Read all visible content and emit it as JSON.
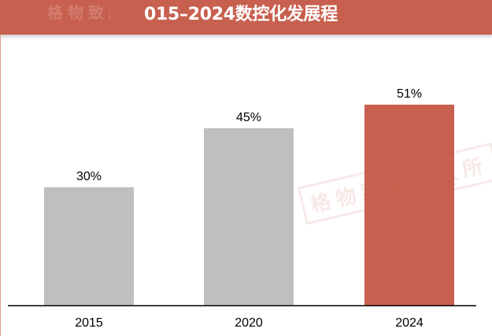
{
  "header": {
    "title": "015–2024数控化发展程",
    "watermark_text": "格物致胜"
  },
  "watermark": {
    "text": "格物致胜版权所"
  },
  "colors": {
    "header_bg": "#c8604f",
    "bar_default": "#bfbfbf",
    "bar_highlight": "#c8604f",
    "axis": "#000000"
  },
  "chart_data": {
    "type": "bar",
    "title": "",
    "xlabel": "",
    "ylabel": "",
    "categories": [
      "2015",
      "2020",
      "2024"
    ],
    "values": [
      30,
      45,
      51
    ],
    "data_labels": [
      "30%",
      "45%",
      "51%"
    ],
    "ylim": [
      0,
      60
    ],
    "highlight_index": 2,
    "grid": false,
    "legend": "none"
  }
}
